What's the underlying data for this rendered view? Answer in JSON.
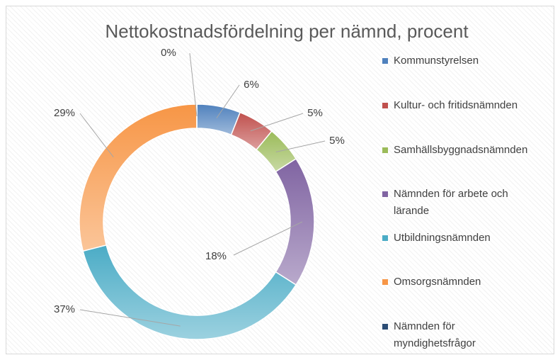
{
  "chart_data": {
    "type": "donut",
    "title": "Nettokostnadsfördelning per nämnd, procent",
    "categories": [
      "Kommunstyrelsen",
      "Kultur- och fritidsnämnden",
      "Samhällsbyggnadsnämnden",
      "Nämnden för arbete och lärande",
      "Utbildningsnämnden",
      "Omsorgsnämnden",
      "Nämnden för myndighetsfrågor"
    ],
    "values": [
      6,
      5,
      5,
      18,
      37,
      29,
      0
    ],
    "value_labels": [
      "6%",
      "5%",
      "5%",
      "18%",
      "37%",
      "29%",
      "0%"
    ],
    "colors": [
      "#4f81bd",
      "#c0504d",
      "#9bbb59",
      "#8064a2",
      "#4bacc6",
      "#f79646",
      "#2c4d75"
    ],
    "legend": "right"
  }
}
